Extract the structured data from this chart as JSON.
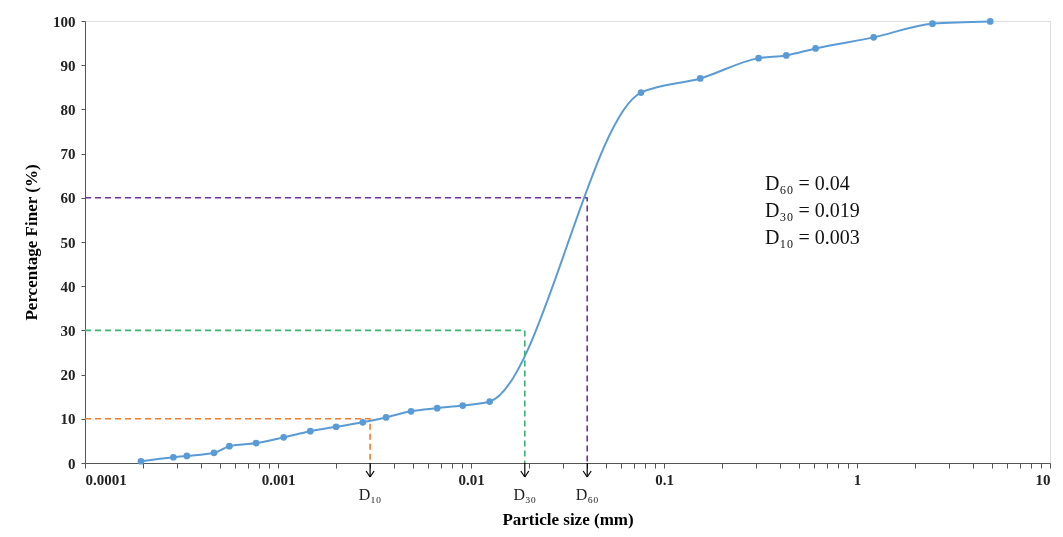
{
  "chart_data": {
    "type": "line",
    "xlabel": "Particle size (mm)",
    "ylabel": "Percentage Finer (%)",
    "log": "x",
    "grid": false,
    "xlim": [
      0.0001,
      10
    ],
    "ylim": [
      0,
      100
    ],
    "xticks": [
      0.0001,
      {
        "value": 0.0002,
        "label": null
      },
      {
        "value": 0.0003,
        "label": null
      },
      {
        "value": 0.0004,
        "label": null
      },
      {
        "value": 0.0005,
        "label": null
      },
      {
        "value": 0.0006,
        "label": null
      },
      {
        "value": 0.0007,
        "label": null
      },
      {
        "value": 0.0008,
        "label": null
      },
      {
        "value": 0.0009,
        "label": null
      },
      0.001,
      {
        "value": 0.002,
        "label": null
      },
      {
        "value": 0.003,
        "label": null
      },
      {
        "value": 0.004,
        "label": null
      },
      {
        "value": 0.005,
        "label": null
      },
      {
        "value": 0.006,
        "label": null
      },
      {
        "value": 0.007,
        "label": null
      },
      {
        "value": 0.008,
        "label": null
      },
      {
        "value": 0.009,
        "label": null
      },
      0.01,
      {
        "value": 0.02,
        "label": null
      },
      {
        "value": 0.03,
        "label": null
      },
      {
        "value": 0.04,
        "label": null
      },
      {
        "value": 0.05,
        "label": null
      },
      {
        "value": 0.06,
        "label": null
      },
      {
        "value": 0.07,
        "label": null
      },
      {
        "value": 0.08,
        "label": null
      },
      {
        "value": 0.09,
        "label": null
      },
      0.1,
      {
        "value": 0.2,
        "label": null
      },
      {
        "value": 0.3,
        "label": null
      },
      {
        "value": 0.4,
        "label": null
      },
      {
        "value": 0.5,
        "label": null
      },
      {
        "value": 0.6,
        "label": null
      },
      {
        "value": 0.7,
        "label": null
      },
      {
        "value": 0.8,
        "label": null
      },
      {
        "value": 0.9,
        "label": null
      },
      1,
      {
        "value": 2,
        "label": null
      },
      {
        "value": 3,
        "label": null
      },
      {
        "value": 4,
        "label": null
      },
      {
        "value": 5,
        "label": null
      },
      {
        "value": 6,
        "label": null
      },
      {
        "value": 7,
        "label": null
      },
      {
        "value": 8,
        "label": null
      },
      {
        "value": 9,
        "label": null
      },
      10
    ],
    "yticks": [
      0,
      10,
      20,
      30,
      40,
      50,
      60,
      70,
      80,
      90,
      100
    ],
    "series": [
      {
        "color": "#5b9bd5",
        "marker": "circle",
        "line_style": "solid",
        "x": [
          0.000195,
          0.000287,
          0.000337,
          0.000466,
          0.00056,
          0.00077,
          0.00107,
          0.00147,
          0.002,
          0.00275,
          0.00363,
          0.00489,
          0.00668,
          0.00906,
          0.0125,
          0.076,
          0.154,
          0.309,
          0.43,
          0.61,
          1.22,
          2.46,
          4.9
        ],
        "values": [
          0.4,
          1.3,
          1.6,
          2.3,
          3.8,
          4.5,
          5.8,
          7.2,
          8.2,
          9.2,
          10.3,
          11.7,
          12.4,
          13.0,
          13.9,
          83.8,
          87.0,
          91.6,
          92.2,
          93.8,
          96.3,
          99.4,
          99.9
        ]
      },
      {
        "color": "#ed7d31",
        "marker": "none",
        "line_style": "dashed",
        "x": [
          0.0001,
          0.003,
          0.003
        ],
        "values": [
          10,
          10,
          0
        ]
      },
      {
        "color": "#3cb371",
        "marker": "none",
        "line_style": "dashed",
        "x": [
          0.0001,
          0.019,
          0.019
        ],
        "values": [
          30,
          30,
          0
        ]
      },
      {
        "color": "#7030a0",
        "marker": "none",
        "line_style": "dashed",
        "x": [
          0.0001,
          0.04,
          0.04
        ],
        "values": [
          60,
          60,
          0
        ]
      }
    ],
    "annotations": [
      "D₆₀ = 0.04",
      "D₃₀ = 0.019",
      "D₁₀ = 0.003",
      {
        "text": "D₁₀",
        "x": 0.003,
        "y": 0
      },
      {
        "text": "D₃₀",
        "x": 0.019,
        "y": 0
      },
      {
        "text": "D₆₀",
        "x": 0.04,
        "y": 0
      }
    ]
  }
}
